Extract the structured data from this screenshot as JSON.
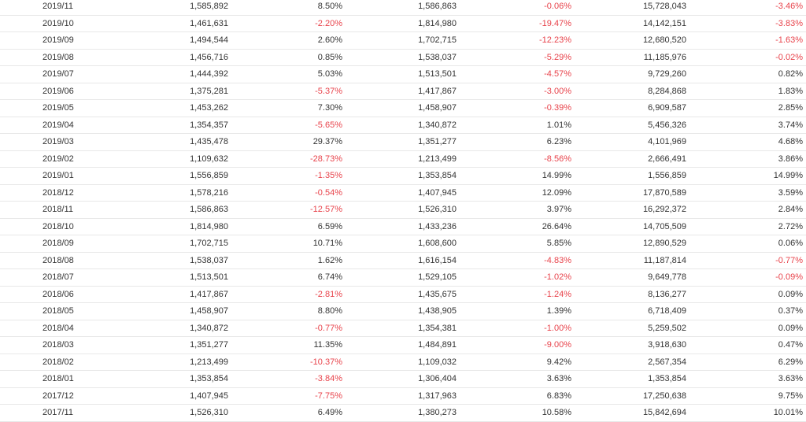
{
  "rows": [
    {
      "period": "2019/11",
      "value_a": "1,585,892",
      "change_a": "8.50%",
      "value_b": "1,586,863",
      "change_b": "-0.06%",
      "cumulative": "15,728,043",
      "change_c": "-3.46%"
    },
    {
      "period": "2019/10",
      "value_a": "1,461,631",
      "change_a": "-2.20%",
      "value_b": "1,814,980",
      "change_b": "-19.47%",
      "cumulative": "14,142,151",
      "change_c": "-3.83%"
    },
    {
      "period": "2019/09",
      "value_a": "1,494,544",
      "change_a": "2.60%",
      "value_b": "1,702,715",
      "change_b": "-12.23%",
      "cumulative": "12,680,520",
      "change_c": "-1.63%"
    },
    {
      "period": "2019/08",
      "value_a": "1,456,716",
      "change_a": "0.85%",
      "value_b": "1,538,037",
      "change_b": "-5.29%",
      "cumulative": "11,185,976",
      "change_c": "-0.02%"
    },
    {
      "period": "2019/07",
      "value_a": "1,444,392",
      "change_a": "5.03%",
      "value_b": "1,513,501",
      "change_b": "-4.57%",
      "cumulative": "9,729,260",
      "change_c": "0.82%"
    },
    {
      "period": "2019/06",
      "value_a": "1,375,281",
      "change_a": "-5.37%",
      "value_b": "1,417,867",
      "change_b": "-3.00%",
      "cumulative": "8,284,868",
      "change_c": "1.83%"
    },
    {
      "period": "2019/05",
      "value_a": "1,453,262",
      "change_a": "7.30%",
      "value_b": "1,458,907",
      "change_b": "-0.39%",
      "cumulative": "6,909,587",
      "change_c": "2.85%"
    },
    {
      "period": "2019/04",
      "value_a": "1,354,357",
      "change_a": "-5.65%",
      "value_b": "1,340,872",
      "change_b": "1.01%",
      "cumulative": "5,456,326",
      "change_c": "3.74%"
    },
    {
      "period": "2019/03",
      "value_a": "1,435,478",
      "change_a": "29.37%",
      "value_b": "1,351,277",
      "change_b": "6.23%",
      "cumulative": "4,101,969",
      "change_c": "4.68%"
    },
    {
      "period": "2019/02",
      "value_a": "1,109,632",
      "change_a": "-28.73%",
      "value_b": "1,213,499",
      "change_b": "-8.56%",
      "cumulative": "2,666,491",
      "change_c": "3.86%"
    },
    {
      "period": "2019/01",
      "value_a": "1,556,859",
      "change_a": "-1.35%",
      "value_b": "1,353,854",
      "change_b": "14.99%",
      "cumulative": "1,556,859",
      "change_c": "14.99%"
    },
    {
      "period": "2018/12",
      "value_a": "1,578,216",
      "change_a": "-0.54%",
      "value_b": "1,407,945",
      "change_b": "12.09%",
      "cumulative": "17,870,589",
      "change_c": "3.59%"
    },
    {
      "period": "2018/11",
      "value_a": "1,586,863",
      "change_a": "-12.57%",
      "value_b": "1,526,310",
      "change_b": "3.97%",
      "cumulative": "16,292,372",
      "change_c": "2.84%"
    },
    {
      "period": "2018/10",
      "value_a": "1,814,980",
      "change_a": "6.59%",
      "value_b": "1,433,236",
      "change_b": "26.64%",
      "cumulative": "14,705,509",
      "change_c": "2.72%"
    },
    {
      "period": "2018/09",
      "value_a": "1,702,715",
      "change_a": "10.71%",
      "value_b": "1,608,600",
      "change_b": "5.85%",
      "cumulative": "12,890,529",
      "change_c": "0.06%"
    },
    {
      "period": "2018/08",
      "value_a": "1,538,037",
      "change_a": "1.62%",
      "value_b": "1,616,154",
      "change_b": "-4.83%",
      "cumulative": "11,187,814",
      "change_c": "-0.77%"
    },
    {
      "period": "2018/07",
      "value_a": "1,513,501",
      "change_a": "6.74%",
      "value_b": "1,529,105",
      "change_b": "-1.02%",
      "cumulative": "9,649,778",
      "change_c": "-0.09%"
    },
    {
      "period": "2018/06",
      "value_a": "1,417,867",
      "change_a": "-2.81%",
      "value_b": "1,435,675",
      "change_b": "-1.24%",
      "cumulative": "8,136,277",
      "change_c": "0.09%"
    },
    {
      "period": "2018/05",
      "value_a": "1,458,907",
      "change_a": "8.80%",
      "value_b": "1,438,905",
      "change_b": "1.39%",
      "cumulative": "6,718,409",
      "change_c": "0.37%"
    },
    {
      "period": "2018/04",
      "value_a": "1,340,872",
      "change_a": "-0.77%",
      "value_b": "1,354,381",
      "change_b": "-1.00%",
      "cumulative": "5,259,502",
      "change_c": "0.09%"
    },
    {
      "period": "2018/03",
      "value_a": "1,351,277",
      "change_a": "11.35%",
      "value_b": "1,484,891",
      "change_b": "-9.00%",
      "cumulative": "3,918,630",
      "change_c": "0.47%"
    },
    {
      "period": "2018/02",
      "value_a": "1,213,499",
      "change_a": "-10.37%",
      "value_b": "1,109,032",
      "change_b": "9.42%",
      "cumulative": "2,567,354",
      "change_c": "6.29%"
    },
    {
      "period": "2018/01",
      "value_a": "1,353,854",
      "change_a": "-3.84%",
      "value_b": "1,306,404",
      "change_b": "3.63%",
      "cumulative": "1,353,854",
      "change_c": "3.63%"
    },
    {
      "period": "2017/12",
      "value_a": "1,407,945",
      "change_a": "-7.75%",
      "value_b": "1,317,963",
      "change_b": "6.83%",
      "cumulative": "17,250,638",
      "change_c": "9.75%"
    },
    {
      "period": "2017/11",
      "value_a": "1,526,310",
      "change_a": "6.49%",
      "value_b": "1,380,273",
      "change_b": "10.58%",
      "cumulative": "15,842,694",
      "change_c": "10.01%"
    }
  ],
  "colors": {
    "text": "#333333",
    "negative": "#e8434b",
    "row_border": "#e8e8e8"
  }
}
